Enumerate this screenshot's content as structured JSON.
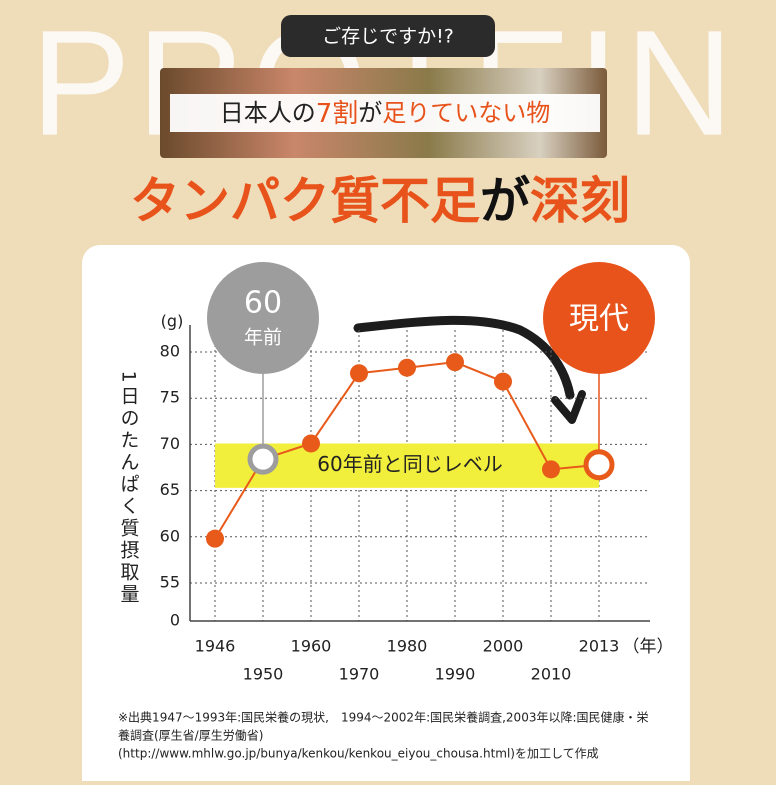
{
  "header": {
    "badge": "ご存じですか!?",
    "watermark": "PROTEIN",
    "subtitle": [
      "日本人の",
      "7割",
      "が",
      "足りていない物"
    ],
    "title": [
      "タンパク質不足",
      "が",
      "深刻"
    ]
  },
  "chart_data": {
    "type": "line",
    "y_label": "1日のたんぱく質摂取量",
    "y_unit": "(g)",
    "x_unit": "（年）",
    "categories": [
      "1946",
      "1950",
      "1960",
      "1970",
      "1980",
      "1990",
      "2000",
      "2010",
      "2013"
    ],
    "series": [
      {
        "name": null,
        "color": "#e85a1a",
        "values": [
          59.8,
          68.4,
          70.1,
          77.7,
          78.3,
          78.9,
          76.8,
          67.3,
          67.8
        ],
        "markers": [
          "filled",
          "open",
          "filled",
          "filled",
          "filled",
          "filled",
          "filled",
          "filled",
          "open"
        ]
      }
    ],
    "ylim": [
      0,
      82
    ],
    "yticks": [
      0,
      55,
      60,
      65,
      70,
      75,
      80
    ],
    "grid": true,
    "band": {
      "label": "60年前と同じレベル",
      "from": 65.3,
      "to": 70.1,
      "color": "#f1ee3c"
    },
    "callouts": [
      {
        "lines": [
          "60",
          "年前"
        ],
        "color": "#9d9d9d",
        "point": 1
      },
      {
        "lines": [
          "現代"
        ],
        "color": "#e8531b",
        "point": 8
      }
    ]
  },
  "footnote": [
    "※出典1947〜1993年:国民栄養の現状,　1994〜2002年:国民栄養調査,2003年以降:国民健康・栄",
    "養調査(厚生省/厚生労働省)",
    "(http://www.mhlw.go.jp/bunya/kenkou/kenkou_eiyou_chousa.html)を加工して作成"
  ]
}
